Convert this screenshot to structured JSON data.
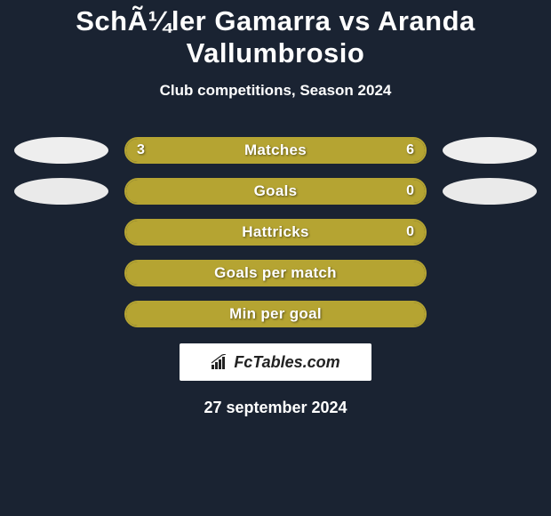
{
  "title": "SchÃ¼ler Gamarra vs Aranda Vallumbrosio",
  "subtitle": "Club competitions, Season 2024",
  "date": "27 september 2024",
  "logo_text": "FcTables.com",
  "colors": {
    "background": "#1a2332",
    "bar_border": "#b5a432",
    "bar_fill": "#b5a432",
    "avatar1": "#eeeeee",
    "avatar2": "#eaeaea"
  },
  "rows": [
    {
      "label": "Matches",
      "left_value": "3",
      "right_value": "6",
      "left_pct": 33.3,
      "right_pct": 66.7,
      "show_avatars": true,
      "show_values": true
    },
    {
      "label": "Goals",
      "left_value": "",
      "right_value": "0",
      "left_pct": 100,
      "right_pct": 0,
      "show_avatars": true,
      "show_values": true
    },
    {
      "label": "Hattricks",
      "left_value": "",
      "right_value": "0",
      "left_pct": 100,
      "right_pct": 0,
      "show_avatars": false,
      "show_values": true
    },
    {
      "label": "Goals per match",
      "left_value": "",
      "right_value": "",
      "left_pct": 100,
      "right_pct": 0,
      "show_avatars": false,
      "show_values": false
    },
    {
      "label": "Min per goal",
      "left_value": "",
      "right_value": "",
      "left_pct": 100,
      "right_pct": 0,
      "show_avatars": false,
      "show_values": false
    }
  ]
}
